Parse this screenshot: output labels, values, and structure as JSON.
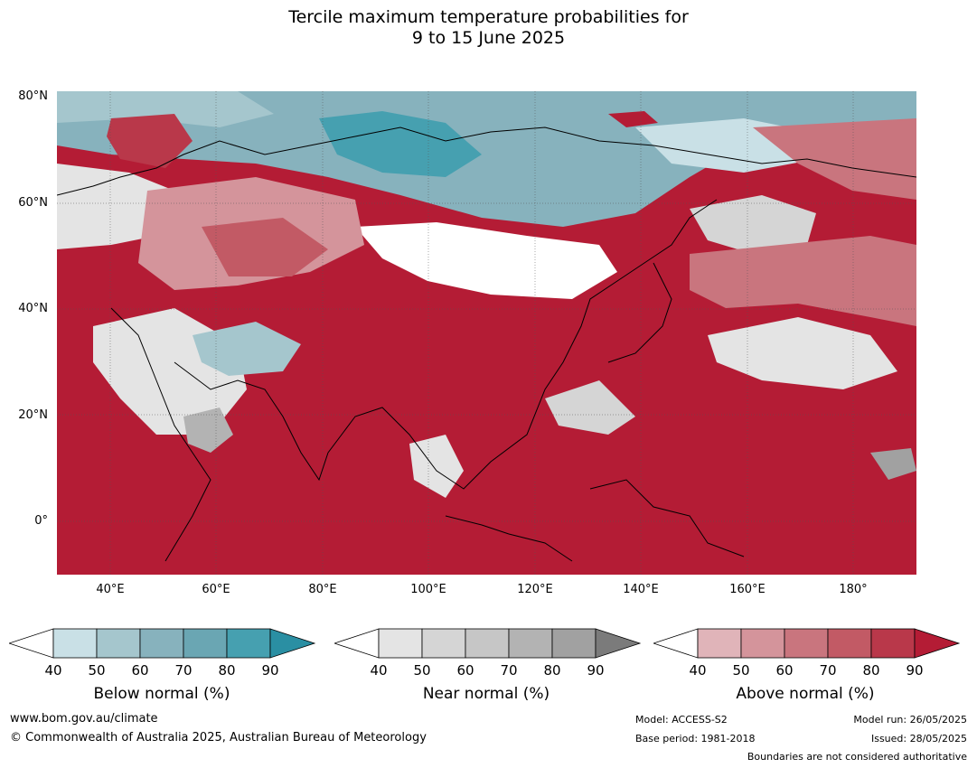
{
  "title": {
    "line1": "Tercile maximum temperature probabilities for",
    "line2": "9 to 15 June 2025"
  },
  "map": {
    "lat_labels": [
      "80°N",
      "60°N",
      "40°N",
      "20°N",
      "0°"
    ],
    "lon_labels": [
      "40°E",
      "60°E",
      "80°E",
      "100°E",
      "120°E",
      "140°E",
      "160°E",
      "180°"
    ],
    "ocean_color": "#b41c35"
  },
  "colorbars": [
    {
      "title": "Below normal (%)",
      "ticks": [
        "40",
        "50",
        "60",
        "70",
        "80",
        "90"
      ],
      "colors": [
        "#c9e0e6",
        "#a5c6cd",
        "#87b2bd",
        "#6aa6b3",
        "#46a0b0",
        "#2a8fa3"
      ]
    },
    {
      "title": "Near normal (%)",
      "ticks": [
        "40",
        "50",
        "60",
        "70",
        "80",
        "90"
      ],
      "colors": [
        "#e4e4e4",
        "#d5d5d5",
        "#c6c6c6",
        "#b3b3b3",
        "#a1a1a1",
        "#7b7b7b"
      ]
    },
    {
      "title": "Above normal (%)",
      "ticks": [
        "40",
        "50",
        "60",
        "70",
        "80",
        "90"
      ],
      "colors": [
        "#e0b4b9",
        "#d4949b",
        "#c9757e",
        "#c25a65",
        "#b9384a",
        "#b41c35"
      ]
    }
  ],
  "footer": {
    "url": "www.bom.gov.au/climate",
    "copyright": "© Commonwealth of Australia 2025, Australian Bureau of Meteorology",
    "model": "Model: ACCESS-S2",
    "base_period": "Base period: 1981-2018",
    "model_run": "Model run: 26/05/2025",
    "issued": "Issued: 28/05/2025",
    "disclaimer": "Boundaries are not considered authoritative"
  }
}
